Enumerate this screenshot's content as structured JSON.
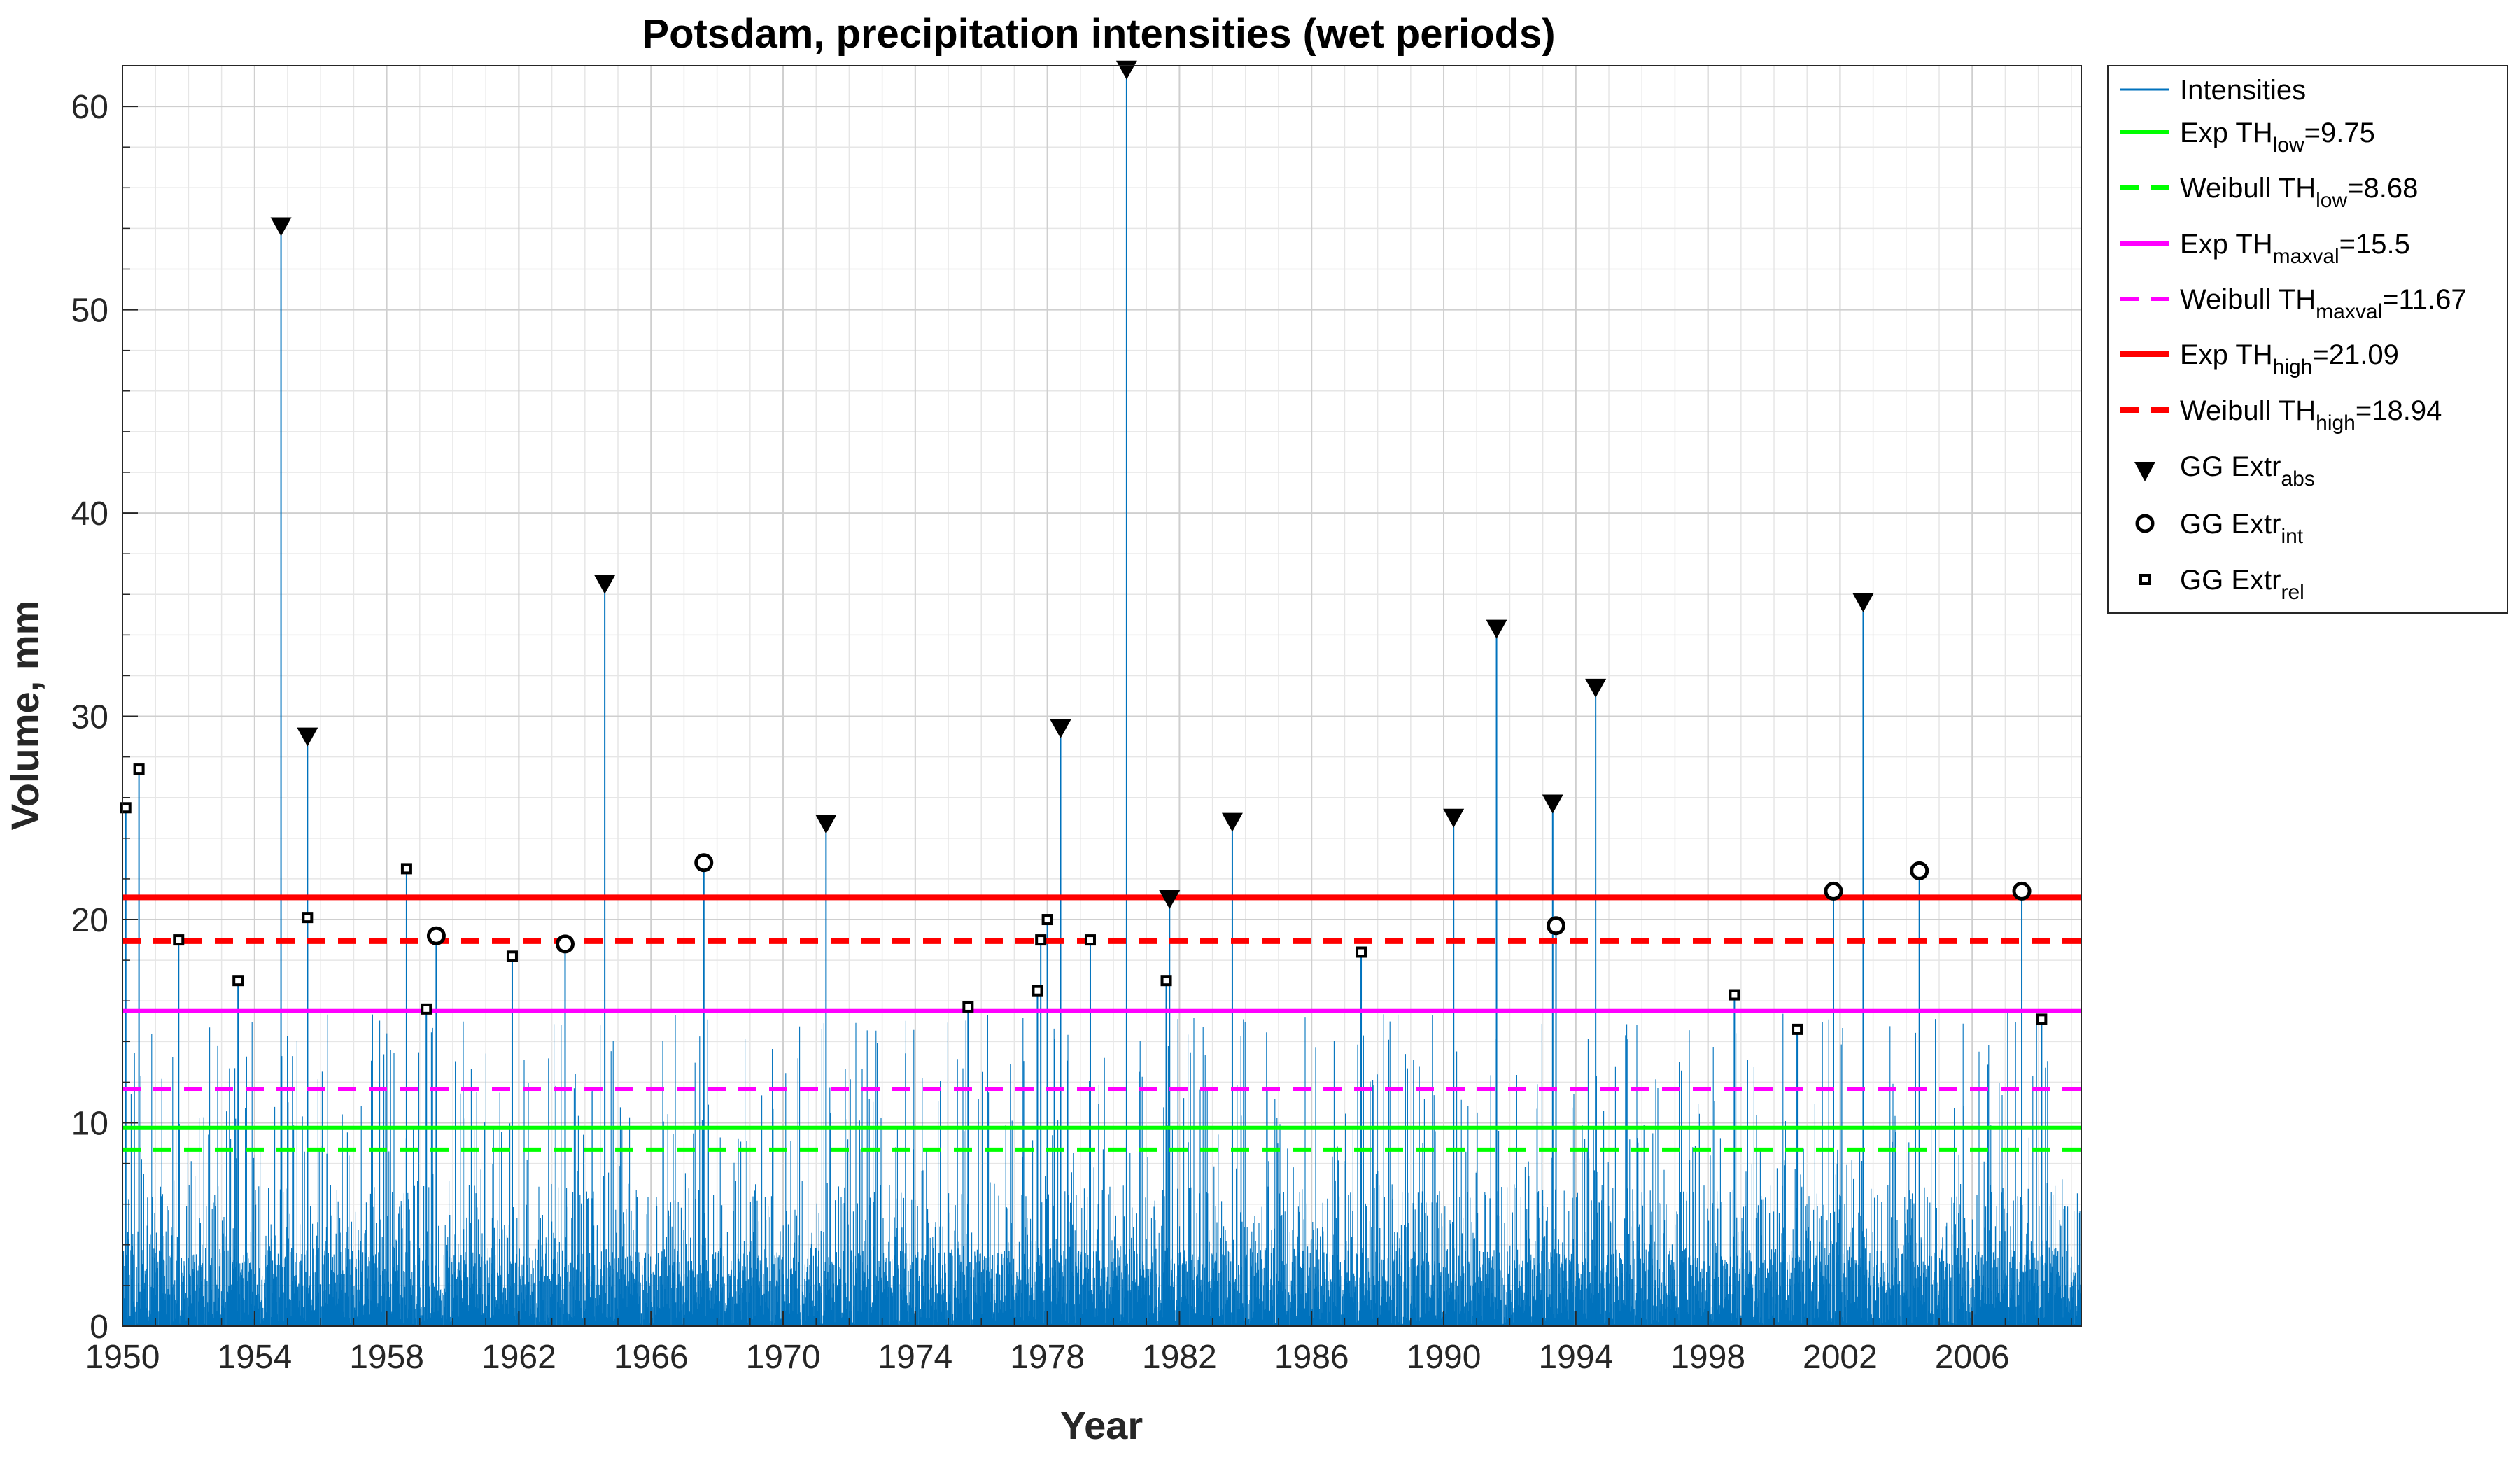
{
  "chart_data": {
    "type": "stem",
    "title": "Potsdam, precipitation intensities (wet periods)",
    "xlabel": "Year",
    "ylabel": "Volume, mm",
    "xlim": [
      1950,
      2009.3
    ],
    "ylim": [
      0,
      62
    ],
    "grid": "major and minor",
    "legend_position": "outside-top-right",
    "x_ticks": [
      "1950",
      "1954",
      "1958",
      "1962",
      "1966",
      "1970",
      "1974",
      "1978",
      "1982",
      "1986",
      "1990",
      "1994",
      "1998",
      "2002",
      "2006"
    ],
    "y_ticks": [
      "0",
      "10",
      "20",
      "30",
      "40",
      "50",
      "60"
    ],
    "intensities": {
      "name": "Intensities",
      "color": "#0072BD",
      "typical_max_mm": 7,
      "peaks": [
        {
          "x": 1950.1,
          "y": 25.5
        },
        {
          "x": 1950.5,
          "y": 27.4
        },
        {
          "x": 1951.7,
          "y": 19.0
        },
        {
          "x": 1953.5,
          "y": 17.0
        },
        {
          "x": 1954.8,
          "y": 54.1
        },
        {
          "x": 1955.6,
          "y": 29.0
        },
        {
          "x": 1955.6,
          "y": 20.1
        },
        {
          "x": 1958.6,
          "y": 22.5
        },
        {
          "x": 1959.2,
          "y": 15.6
        },
        {
          "x": 1959.5,
          "y": 19.2
        },
        {
          "x": 1961.8,
          "y": 18.2
        },
        {
          "x": 1963.4,
          "y": 18.8
        },
        {
          "x": 1964.6,
          "y": 36.5
        },
        {
          "x": 1967.6,
          "y": 22.8
        },
        {
          "x": 1971.3,
          "y": 24.7
        },
        {
          "x": 1975.6,
          "y": 15.7
        },
        {
          "x": 1977.7,
          "y": 16.5
        },
        {
          "x": 1977.8,
          "y": 19.0
        },
        {
          "x": 1978.0,
          "y": 20.0
        },
        {
          "x": 1978.4,
          "y": 29.4
        },
        {
          "x": 1979.3,
          "y": 19.0
        },
        {
          "x": 1980.4,
          "y": 61.8
        },
        {
          "x": 1981.6,
          "y": 17.0
        },
        {
          "x": 1981.7,
          "y": 21.0
        },
        {
          "x": 1983.6,
          "y": 24.8
        },
        {
          "x": 1987.5,
          "y": 18.4
        },
        {
          "x": 1990.3,
          "y": 25.0
        },
        {
          "x": 1991.6,
          "y": 34.3
        },
        {
          "x": 1993.3,
          "y": 25.7
        },
        {
          "x": 1993.4,
          "y": 19.7
        },
        {
          "x": 1994.6,
          "y": 31.4
        },
        {
          "x": 1998.8,
          "y": 16.3
        },
        {
          "x": 2000.7,
          "y": 14.6
        },
        {
          "x": 2001.8,
          "y": 21.4
        },
        {
          "x": 2002.7,
          "y": 35.6
        },
        {
          "x": 2004.4,
          "y": 22.4
        },
        {
          "x": 2007.5,
          "y": 21.4
        },
        {
          "x": 2008.1,
          "y": 15.1
        }
      ]
    },
    "thresholds": [
      {
        "name": "Exp TH",
        "sub": "low",
        "value": 9.75,
        "label_value": "=9.75",
        "color": "#00FF00",
        "style": "solid"
      },
      {
        "name": "Weibull TH",
        "sub": "low",
        "value": 8.68,
        "label_value": "=8.68",
        "color": "#00FF00",
        "style": "dashed"
      },
      {
        "name": "Exp TH",
        "sub": "maxval",
        "value": 15.5,
        "label_value": "=15.5",
        "color": "#FF00FF",
        "style": "solid"
      },
      {
        "name": "Weibull TH",
        "sub": "maxval",
        "value": 11.67,
        "label_value": "=11.67",
        "color": "#FF00FF",
        "style": "dashed"
      },
      {
        "name": "Exp TH",
        "sub": "high",
        "value": 21.09,
        "label_value": "=21.09",
        "color": "#FF0000",
        "style": "solid"
      },
      {
        "name": "Weibull TH",
        "sub": "high",
        "value": 18.94,
        "label_value": "=18.94",
        "color": "#FF0000",
        "style": "dashed"
      }
    ],
    "markers": {
      "abs": {
        "name": "GG Extr",
        "sub": "abs",
        "symbol": "triangle-down",
        "points": [
          {
            "x": 1954.8,
            "y": 54.1
          },
          {
            "x": 1955.6,
            "y": 29.0
          },
          {
            "x": 1964.6,
            "y": 36.5
          },
          {
            "x": 1971.3,
            "y": 24.7
          },
          {
            "x": 1978.4,
            "y": 29.4
          },
          {
            "x": 1980.4,
            "y": 61.8
          },
          {
            "x": 1981.7,
            "y": 21.0
          },
          {
            "x": 1983.6,
            "y": 24.8
          },
          {
            "x": 1990.3,
            "y": 25.0
          },
          {
            "x": 1991.6,
            "y": 34.3
          },
          {
            "x": 1993.3,
            "y": 25.7
          },
          {
            "x": 1994.6,
            "y": 31.4
          },
          {
            "x": 2002.7,
            "y": 35.6
          }
        ]
      },
      "int": {
        "name": "GG Extr",
        "sub": "int",
        "symbol": "circle",
        "points": [
          {
            "x": 1959.5,
            "y": 19.2
          },
          {
            "x": 1963.4,
            "y": 18.8
          },
          {
            "x": 1967.6,
            "y": 22.8
          },
          {
            "x": 1993.4,
            "y": 19.7
          },
          {
            "x": 2001.8,
            "y": 21.4
          },
          {
            "x": 2004.4,
            "y": 22.4
          },
          {
            "x": 2007.5,
            "y": 21.4
          }
        ]
      },
      "rel": {
        "name": "GG Extr",
        "sub": "rel",
        "symbol": "square",
        "points": [
          {
            "x": 1950.1,
            "y": 25.5
          },
          {
            "x": 1950.5,
            "y": 27.4
          },
          {
            "x": 1951.7,
            "y": 19.0
          },
          {
            "x": 1953.5,
            "y": 17.0
          },
          {
            "x": 1955.6,
            "y": 20.1
          },
          {
            "x": 1958.6,
            "y": 22.5
          },
          {
            "x": 1959.2,
            "y": 15.6
          },
          {
            "x": 1961.8,
            "y": 18.2
          },
          {
            "x": 1975.6,
            "y": 15.7
          },
          {
            "x": 1977.7,
            "y": 16.5
          },
          {
            "x": 1977.8,
            "y": 19.0
          },
          {
            "x": 1978.0,
            "y": 20.0
          },
          {
            "x": 1979.3,
            "y": 19.0
          },
          {
            "x": 1981.6,
            "y": 17.0
          },
          {
            "x": 1987.5,
            "y": 18.4
          },
          {
            "x": 1998.8,
            "y": 16.3
          },
          {
            "x": 2000.7,
            "y": 14.6
          },
          {
            "x": 2008.1,
            "y": 15.1
          }
        ]
      }
    }
  }
}
